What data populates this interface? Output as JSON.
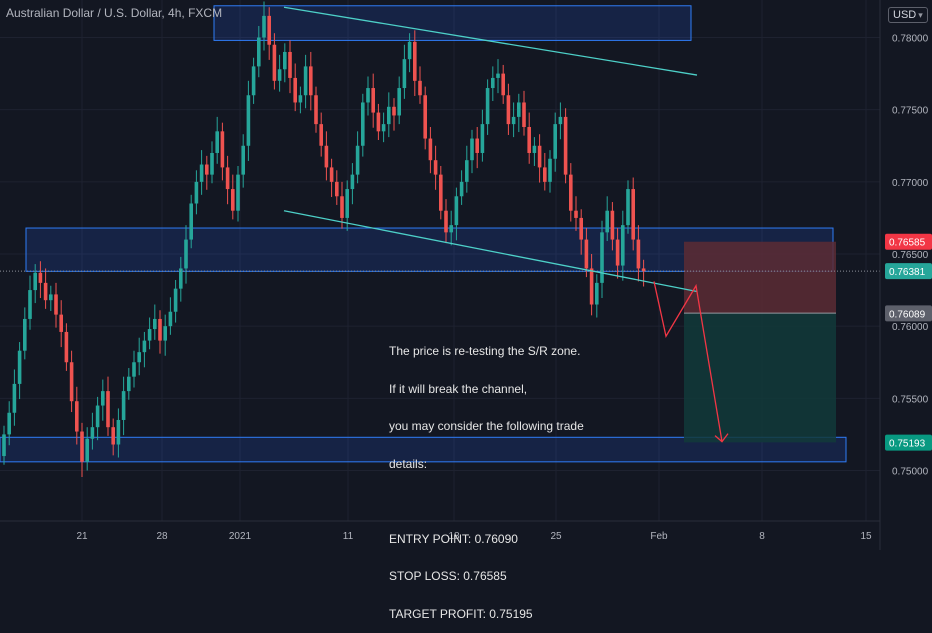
{
  "header": {
    "title": "Australian Dollar / U.S. Dollar, 4h, FXCM",
    "currency": "USD",
    "currency_icon": "chevron-down-icon"
  },
  "colors": {
    "background": "#131722",
    "up_candle": "#26a69a",
    "down_candle": "#ef5350",
    "zone_border": "#2962ff",
    "trendline": "#4dd0c8",
    "projection_arrow": "#f23645",
    "stop_zone": "#5c2b34",
    "target_zone": "#123a3a"
  },
  "annotation": {
    "lines": [
      "The price is re-testing the S/R zone.",
      "If it will break the channel,",
      "you may consider the following trade",
      "details:",
      "",
      "ENTRY POINT: 0.76090",
      "STOP LOSS: 0.76585",
      "TARGET PROFIT: 0.75195"
    ]
  },
  "chart_data": {
    "type": "candlestick",
    "symbol": "AUD/USD",
    "timeframe": "4h",
    "source": "FXCM",
    "ylim": [
      0.7465,
      0.7826
    ],
    "y_ticks": [
      0.75,
      0.755,
      0.76,
      0.765,
      0.77,
      0.775,
      0.78
    ],
    "y_tick_labels": [
      "0.75000",
      "0.75500",
      "0.76000",
      "0.76500",
      "0.77000",
      "0.77500",
      "0.78000"
    ],
    "x_tick_labels": [
      "21",
      "28",
      "2021",
      "11",
      "18",
      "25",
      "Feb",
      "8",
      "15"
    ],
    "grid": true,
    "price_labels": [
      {
        "value": 0.76585,
        "text": "0.76585",
        "role": "stop-loss"
      },
      {
        "value": 0.76381,
        "text": "0.76381",
        "role": "current-price"
      },
      {
        "value": 0.76089,
        "text": "0.76089",
        "role": "entry"
      },
      {
        "value": 0.75193,
        "text": "0.75193",
        "role": "target"
      }
    ],
    "zones": [
      {
        "name": "upper-resistance-zone",
        "low": 0.7798,
        "high": 0.7822
      },
      {
        "name": "sr-zone",
        "low": 0.7638,
        "high": 0.7668
      },
      {
        "name": "lower-support-zone",
        "low": 0.7506,
        "high": 0.7523
      }
    ],
    "trade": {
      "entry": 0.7609,
      "stop_loss": 0.76585,
      "target": 0.75195
    },
    "trendlines": [
      {
        "name": "channel-upper-line",
        "from": 0.7821,
        "to": 0.7774
      },
      {
        "name": "channel-lower-line",
        "from": 0.768,
        "to": 0.7624
      }
    ],
    "projection": [
      0.7631,
      0.7593,
      0.7628,
      0.752
    ],
    "closes": [
      0.7525,
      0.754,
      0.756,
      0.7583,
      0.7605,
      0.7625,
      0.7637,
      0.763,
      0.7618,
      0.7622,
      0.7608,
      0.7596,
      0.7575,
      0.7548,
      0.7527,
      0.7506,
      0.7522,
      0.753,
      0.7545,
      0.7555,
      0.753,
      0.7518,
      0.7535,
      0.7555,
      0.7565,
      0.7575,
      0.7582,
      0.759,
      0.7598,
      0.7605,
      0.759,
      0.76,
      0.761,
      0.7626,
      0.764,
      0.766,
      0.7685,
      0.77,
      0.7712,
      0.7705,
      0.772,
      0.7735,
      0.771,
      0.7695,
      0.768,
      0.7705,
      0.7725,
      0.776,
      0.778,
      0.78,
      0.7815,
      0.7795,
      0.777,
      0.7778,
      0.779,
      0.7772,
      0.7755,
      0.776,
      0.778,
      0.776,
      0.774,
      0.7725,
      0.771,
      0.77,
      0.769,
      0.7675,
      0.7695,
      0.7705,
      0.7725,
      0.7755,
      0.7765,
      0.7748,
      0.7735,
      0.774,
      0.7752,
      0.7746,
      0.7765,
      0.7785,
      0.7797,
      0.777,
      0.776,
      0.773,
      0.7715,
      0.7705,
      0.768,
      0.7665,
      0.767,
      0.769,
      0.77,
      0.7715,
      0.773,
      0.772,
      0.774,
      0.7765,
      0.7772,
      0.7775,
      0.776,
      0.774,
      0.7745,
      0.7755,
      0.7738,
      0.772,
      0.7725,
      0.771,
      0.77,
      0.7716,
      0.774,
      0.7745,
      0.7705,
      0.768,
      0.7675,
      0.766,
      0.764,
      0.7615,
      0.763,
      0.7665,
      0.768,
      0.766,
      0.7642,
      0.767,
      0.7695,
      0.766,
      0.764,
      0.7638
    ]
  }
}
